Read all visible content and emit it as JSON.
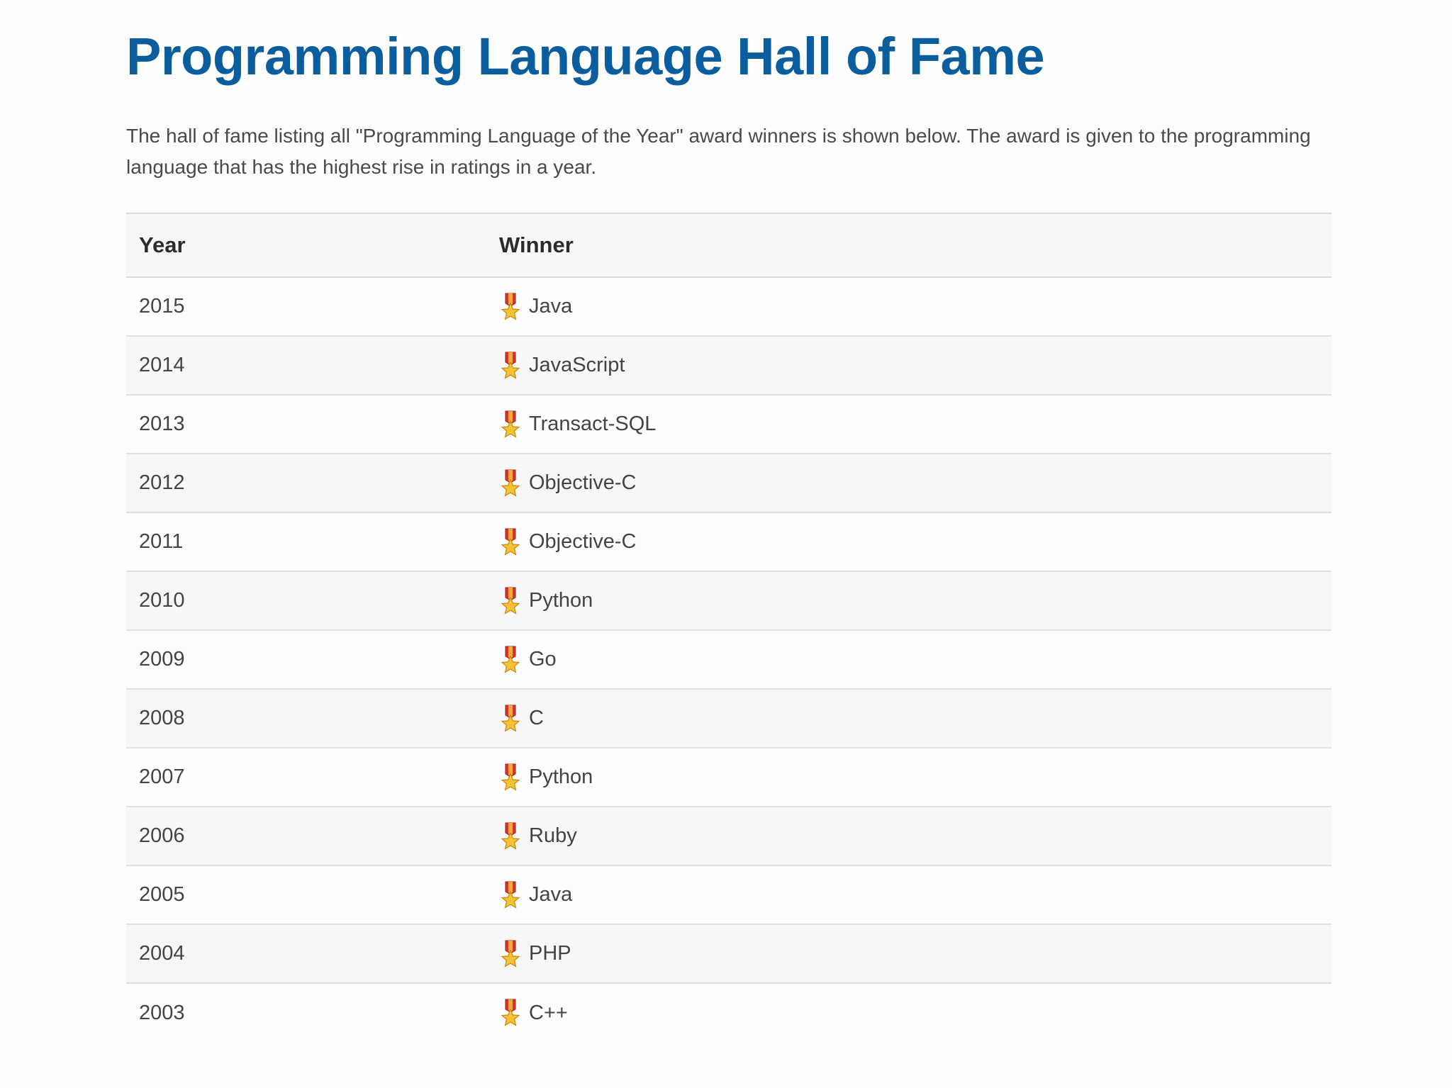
{
  "page": {
    "title": "Programming Language Hall of Fame",
    "intro": "The hall of fame listing all \"Programming Language of the Year\" award winners is shown below. The award is given to the programming language that has the highest rise in ratings in a year."
  },
  "table": {
    "headers": {
      "year": "Year",
      "winner": "Winner"
    },
    "rows": [
      {
        "year": "2015",
        "winner": "Java",
        "icon": "medal-icon"
      },
      {
        "year": "2014",
        "winner": "JavaScript",
        "icon": "medal-icon"
      },
      {
        "year": "2013",
        "winner": "Transact-SQL",
        "icon": "medal-icon"
      },
      {
        "year": "2012",
        "winner": "Objective-C",
        "icon": "medal-icon"
      },
      {
        "year": "2011",
        "winner": "Objective-C",
        "icon": "medal-icon"
      },
      {
        "year": "2010",
        "winner": "Python",
        "icon": "medal-icon"
      },
      {
        "year": "2009",
        "winner": "Go",
        "icon": "medal-icon"
      },
      {
        "year": "2008",
        "winner": "C",
        "icon": "medal-icon"
      },
      {
        "year": "2007",
        "winner": "Python",
        "icon": "medal-icon"
      },
      {
        "year": "2006",
        "winner": "Ruby",
        "icon": "medal-icon"
      },
      {
        "year": "2005",
        "winner": "Java",
        "icon": "medal-icon"
      },
      {
        "year": "2004",
        "winner": "PHP",
        "icon": "medal-icon"
      },
      {
        "year": "2003",
        "winner": "C++",
        "icon": "medal-icon"
      }
    ]
  },
  "colors": {
    "title": "#0a5e9e",
    "text": "#444444",
    "row_alt": "#f7f7f7",
    "medal_ribbon": "#d9342b",
    "medal_star": "#f5c233"
  }
}
